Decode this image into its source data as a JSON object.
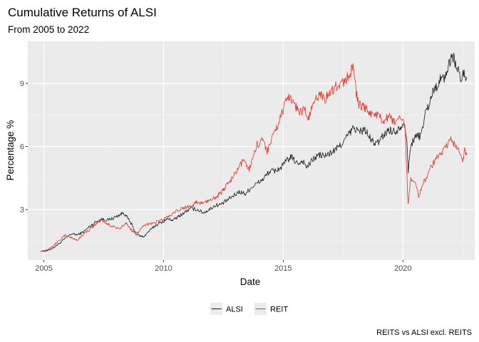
{
  "chart_data": {
    "type": "line",
    "title": "Cumulative Returns of ALSI",
    "subtitle": "From 2005 to 2022",
    "xlabel": "Date",
    "ylabel": "Percentage %",
    "caption": "REITS vs ALSI excl. REITS",
    "xlim": [
      "2004-05-01",
      "2023-01-01"
    ],
    "ylim": [
      0.6,
      11.0
    ],
    "x_ticks": [
      {
        "value": "2005-01-01",
        "label": "2005"
      },
      {
        "value": "2010-01-01",
        "label": "2010"
      },
      {
        "value": "2015-01-01",
        "label": "2015"
      },
      {
        "value": "2020-01-01",
        "label": "2020"
      }
    ],
    "y_ticks": [
      {
        "value": 3,
        "label": "3"
      },
      {
        "value": 6,
        "label": "6"
      },
      {
        "value": 9,
        "label": "9"
      }
    ],
    "grid": true,
    "legend_position": "bottom",
    "series": [
      {
        "name": "ALSI",
        "color": "#1a1a1a",
        "points": [
          [
            "2004-11-15",
            1.02
          ],
          [
            "2005-03-01",
            1.05
          ],
          [
            "2005-06-01",
            1.2
          ],
          [
            "2005-09-01",
            1.4
          ],
          [
            "2005-12-01",
            1.65
          ],
          [
            "2006-03-01",
            1.85
          ],
          [
            "2006-06-01",
            1.8
          ],
          [
            "2006-09-01",
            1.95
          ],
          [
            "2006-12-01",
            2.2
          ],
          [
            "2007-03-01",
            2.4
          ],
          [
            "2007-06-01",
            2.55
          ],
          [
            "2007-09-01",
            2.5
          ],
          [
            "2007-12-01",
            2.6
          ],
          [
            "2008-03-01",
            2.75
          ],
          [
            "2008-05-01",
            2.85
          ],
          [
            "2008-07-01",
            2.6
          ],
          [
            "2008-09-01",
            2.3
          ],
          [
            "2008-11-01",
            1.85
          ],
          [
            "2009-01-01",
            1.75
          ],
          [
            "2009-03-01",
            1.7
          ],
          [
            "2009-06-01",
            2.0
          ],
          [
            "2009-09-01",
            2.25
          ],
          [
            "2009-12-01",
            2.4
          ],
          [
            "2010-03-01",
            2.55
          ],
          [
            "2010-06-01",
            2.5
          ],
          [
            "2010-09-01",
            2.7
          ],
          [
            "2010-12-01",
            2.9
          ],
          [
            "2011-03-01",
            3.05
          ],
          [
            "2011-06-01",
            3.0
          ],
          [
            "2011-09-01",
            2.85
          ],
          [
            "2011-12-01",
            3.0
          ],
          [
            "2012-03-01",
            3.2
          ],
          [
            "2012-06-01",
            3.25
          ],
          [
            "2012-09-01",
            3.45
          ],
          [
            "2012-12-01",
            3.65
          ],
          [
            "2013-03-01",
            3.85
          ],
          [
            "2013-06-01",
            3.75
          ],
          [
            "2013-09-01",
            4.05
          ],
          [
            "2013-12-01",
            4.25
          ],
          [
            "2014-03-01",
            4.45
          ],
          [
            "2014-06-01",
            4.8
          ],
          [
            "2014-09-01",
            4.85
          ],
          [
            "2014-12-01",
            5.0
          ],
          [
            "2015-03-01",
            5.35
          ],
          [
            "2015-05-01",
            5.5
          ],
          [
            "2015-08-01",
            5.2
          ],
          [
            "2015-11-01",
            5.3
          ],
          [
            "2016-01-01",
            5.0
          ],
          [
            "2016-04-01",
            5.4
          ],
          [
            "2016-07-01",
            5.6
          ],
          [
            "2016-10-01",
            5.55
          ],
          [
            "2017-01-01",
            5.7
          ],
          [
            "2017-04-01",
            5.9
          ],
          [
            "2017-07-01",
            6.2
          ],
          [
            "2017-10-01",
            6.6
          ],
          [
            "2017-12-15",
            6.9
          ],
          [
            "2018-03-01",
            6.7
          ],
          [
            "2018-06-01",
            6.8
          ],
          [
            "2018-09-01",
            6.3
          ],
          [
            "2018-12-01",
            6.1
          ],
          [
            "2019-03-01",
            6.5
          ],
          [
            "2019-06-01",
            6.8
          ],
          [
            "2019-09-01",
            6.7
          ],
          [
            "2019-12-01",
            7.0
          ],
          [
            "2020-02-01",
            7.1
          ],
          [
            "2020-03-10",
            5.8
          ],
          [
            "2020-03-23",
            4.8
          ],
          [
            "2020-04-20",
            5.8
          ],
          [
            "2020-06-01",
            6.3
          ],
          [
            "2020-08-01",
            6.5
          ],
          [
            "2020-10-01",
            6.5
          ],
          [
            "2020-12-01",
            7.5
          ],
          [
            "2021-02-01",
            8.0
          ],
          [
            "2021-04-01",
            8.6
          ],
          [
            "2021-06-01",
            8.9
          ],
          [
            "2021-08-01",
            9.2
          ],
          [
            "2021-10-01",
            9.3
          ],
          [
            "2021-12-01",
            9.8
          ],
          [
            "2022-01-15",
            10.4
          ],
          [
            "2022-02-15",
            10.2
          ],
          [
            "2022-04-01",
            9.8
          ],
          [
            "2022-06-01",
            9.2
          ],
          [
            "2022-08-01",
            9.5
          ],
          [
            "2022-09-01",
            9.3
          ]
        ]
      },
      {
        "name": "REIT",
        "color": "#e8322c",
        "points": [
          [
            "2004-11-15",
            1.02
          ],
          [
            "2005-03-01",
            1.1
          ],
          [
            "2005-06-01",
            1.3
          ],
          [
            "2005-09-01",
            1.55
          ],
          [
            "2005-12-01",
            1.8
          ],
          [
            "2006-03-01",
            1.65
          ],
          [
            "2006-06-01",
            1.55
          ],
          [
            "2006-09-01",
            1.85
          ],
          [
            "2006-12-01",
            2.05
          ],
          [
            "2007-03-01",
            2.3
          ],
          [
            "2007-06-01",
            2.5
          ],
          [
            "2007-09-01",
            2.3
          ],
          [
            "2007-12-01",
            2.2
          ],
          [
            "2008-03-01",
            2.05
          ],
          [
            "2008-06-01",
            2.4
          ],
          [
            "2008-09-01",
            2.0
          ],
          [
            "2008-12-01",
            1.9
          ],
          [
            "2009-03-01",
            2.2
          ],
          [
            "2009-06-01",
            2.35
          ],
          [
            "2009-09-01",
            2.4
          ],
          [
            "2009-12-01",
            2.5
          ],
          [
            "2010-03-01",
            2.65
          ],
          [
            "2010-06-01",
            2.8
          ],
          [
            "2010-09-01",
            3.0
          ],
          [
            "2010-12-01",
            3.1
          ],
          [
            "2011-03-01",
            3.2
          ],
          [
            "2011-06-01",
            3.35
          ],
          [
            "2011-09-01",
            3.3
          ],
          [
            "2011-12-01",
            3.45
          ],
          [
            "2012-03-01",
            3.6
          ],
          [
            "2012-06-01",
            3.8
          ],
          [
            "2012-09-01",
            4.2
          ],
          [
            "2012-12-01",
            4.55
          ],
          [
            "2013-03-01",
            5.0
          ],
          [
            "2013-05-15",
            5.4
          ],
          [
            "2013-08-01",
            4.9
          ],
          [
            "2013-10-01",
            5.6
          ],
          [
            "2013-12-01",
            6.1
          ],
          [
            "2014-03-01",
            6.3
          ],
          [
            "2014-05-01",
            5.8
          ],
          [
            "2014-08-01",
            6.5
          ],
          [
            "2014-11-01",
            7.2
          ],
          [
            "2015-01-15",
            7.9
          ],
          [
            "2015-04-01",
            8.4
          ],
          [
            "2015-06-01",
            8.2
          ],
          [
            "2015-09-01",
            7.6
          ],
          [
            "2015-12-01",
            7.8
          ],
          [
            "2016-01-15",
            7.2
          ],
          [
            "2016-04-01",
            8.0
          ],
          [
            "2016-07-01",
            8.5
          ],
          [
            "2016-10-01",
            8.3
          ],
          [
            "2017-01-01",
            8.6
          ],
          [
            "2017-04-01",
            8.9
          ],
          [
            "2017-07-01",
            9.0
          ],
          [
            "2017-10-01",
            9.4
          ],
          [
            "2017-12-10",
            9.8
          ],
          [
            "2018-01-20",
            8.5
          ],
          [
            "2018-03-01",
            8.0
          ],
          [
            "2018-06-01",
            7.8
          ],
          [
            "2018-09-01",
            7.6
          ],
          [
            "2018-12-01",
            7.5
          ],
          [
            "2019-03-01",
            7.2
          ],
          [
            "2019-06-01",
            7.4
          ],
          [
            "2019-09-01",
            7.1
          ],
          [
            "2019-12-01",
            7.3
          ],
          [
            "2020-02-01",
            7.2
          ],
          [
            "2020-03-20",
            3.2
          ],
          [
            "2020-05-01",
            4.5
          ],
          [
            "2020-07-01",
            4.4
          ],
          [
            "2020-09-01",
            3.6
          ],
          [
            "2020-11-01",
            4.2
          ],
          [
            "2021-01-01",
            4.6
          ],
          [
            "2021-03-01",
            5.0
          ],
          [
            "2021-05-01",
            5.3
          ],
          [
            "2021-07-01",
            5.6
          ],
          [
            "2021-09-01",
            5.8
          ],
          [
            "2021-11-01",
            6.0
          ],
          [
            "2022-01-01",
            6.3
          ],
          [
            "2022-03-01",
            6.1
          ],
          [
            "2022-05-01",
            5.8
          ],
          [
            "2022-07-01",
            5.3
          ],
          [
            "2022-08-01",
            5.8
          ],
          [
            "2022-09-01",
            5.6
          ]
        ]
      }
    ]
  }
}
